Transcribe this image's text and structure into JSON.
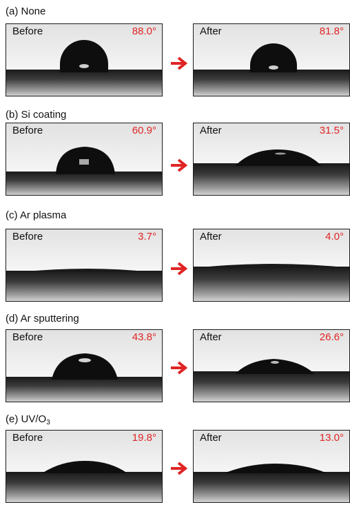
{
  "panels": [
    {
      "label_prefix": "(a) None",
      "label_sub": "",
      "before": {
        "tag": "Before",
        "angle": "88.0°"
      },
      "after": {
        "tag": "After",
        "angle": "81.8°"
      }
    },
    {
      "label_prefix": "(b) Si coating",
      "label_sub": "",
      "before": {
        "tag": "Before",
        "angle": "60.9°"
      },
      "after": {
        "tag": "After",
        "angle": "31.5°"
      }
    },
    {
      "label_prefix": "(c) Ar plasma",
      "label_sub": "",
      "before": {
        "tag": "Before",
        "angle": "3.7°"
      },
      "after": {
        "tag": "After",
        "angle": "4.0°"
      }
    },
    {
      "label_prefix": "(d) Ar sputtering",
      "label_sub": "",
      "before": {
        "tag": "Before",
        "angle": "43.8°"
      },
      "after": {
        "tag": "After",
        "angle": "26.6°"
      }
    },
    {
      "label_prefix": "(e) UV/O",
      "label_sub": "3",
      "before": {
        "tag": "Before",
        "angle": "19.8°"
      },
      "after": {
        "tag": "After",
        "angle": "13.0°"
      }
    }
  ],
  "colors": {
    "angle_text": "#e02424",
    "arrow": "#e02424",
    "photo_border": "#1a1a1a"
  },
  "icons": {
    "transition_arrow": "arrow-right-icon"
  }
}
